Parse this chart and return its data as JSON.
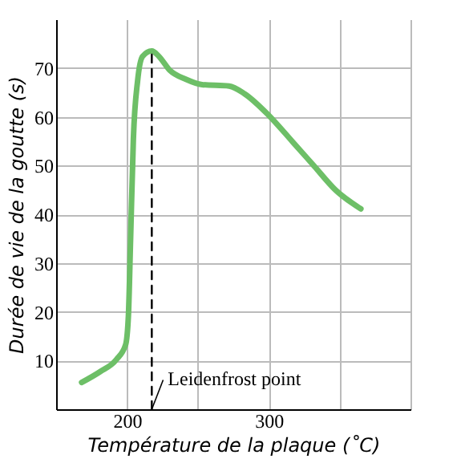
{
  "chart_data": {
    "type": "line",
    "xlabel": "Température de la plaque (˚C)",
    "ylabel": "Durée de vie de la goutte (s)",
    "xlim": [
      150,
      400
    ],
    "xticks": [
      200,
      {
        "value": 250,
        "label": null
      },
      300,
      {
        "value": 350,
        "label": null
      },
      {
        "value": 400,
        "label": null
      }
    ],
    "ylim": [
      0,
      80
    ],
    "yticks": [
      10,
      20,
      30,
      40,
      50,
      60,
      70
    ],
    "grid": true,
    "series": [
      {
        "color": "#6dbf67",
        "line_style": "solid",
        "x": [
          168,
          181,
          192.5,
          199,
          201,
          202.5,
          204.5,
          207.5,
          211,
          217.5,
          222.5,
          230,
          241.5,
          253,
          272,
          283,
          300,
          317,
          332,
          347,
          365
        ],
        "values": [
          5.5,
          7.7,
          10.2,
          13.2,
          19.2,
          34.5,
          55.4,
          67.4,
          72.4,
          73.5,
          72.4,
          69.6,
          67.7,
          66.6,
          66.3,
          64.7,
          60.3,
          54.8,
          49.9,
          45,
          41.1
        ]
      },
      {
        "color": "#000000",
        "line_style": "dashed",
        "x": [
          217.5,
          217.5
        ],
        "values": [
          0,
          73.5
        ]
      }
    ],
    "annotations": [
      {
        "text": "Leidenfrost point",
        "x": 217.5,
        "y": 0
      }
    ]
  }
}
